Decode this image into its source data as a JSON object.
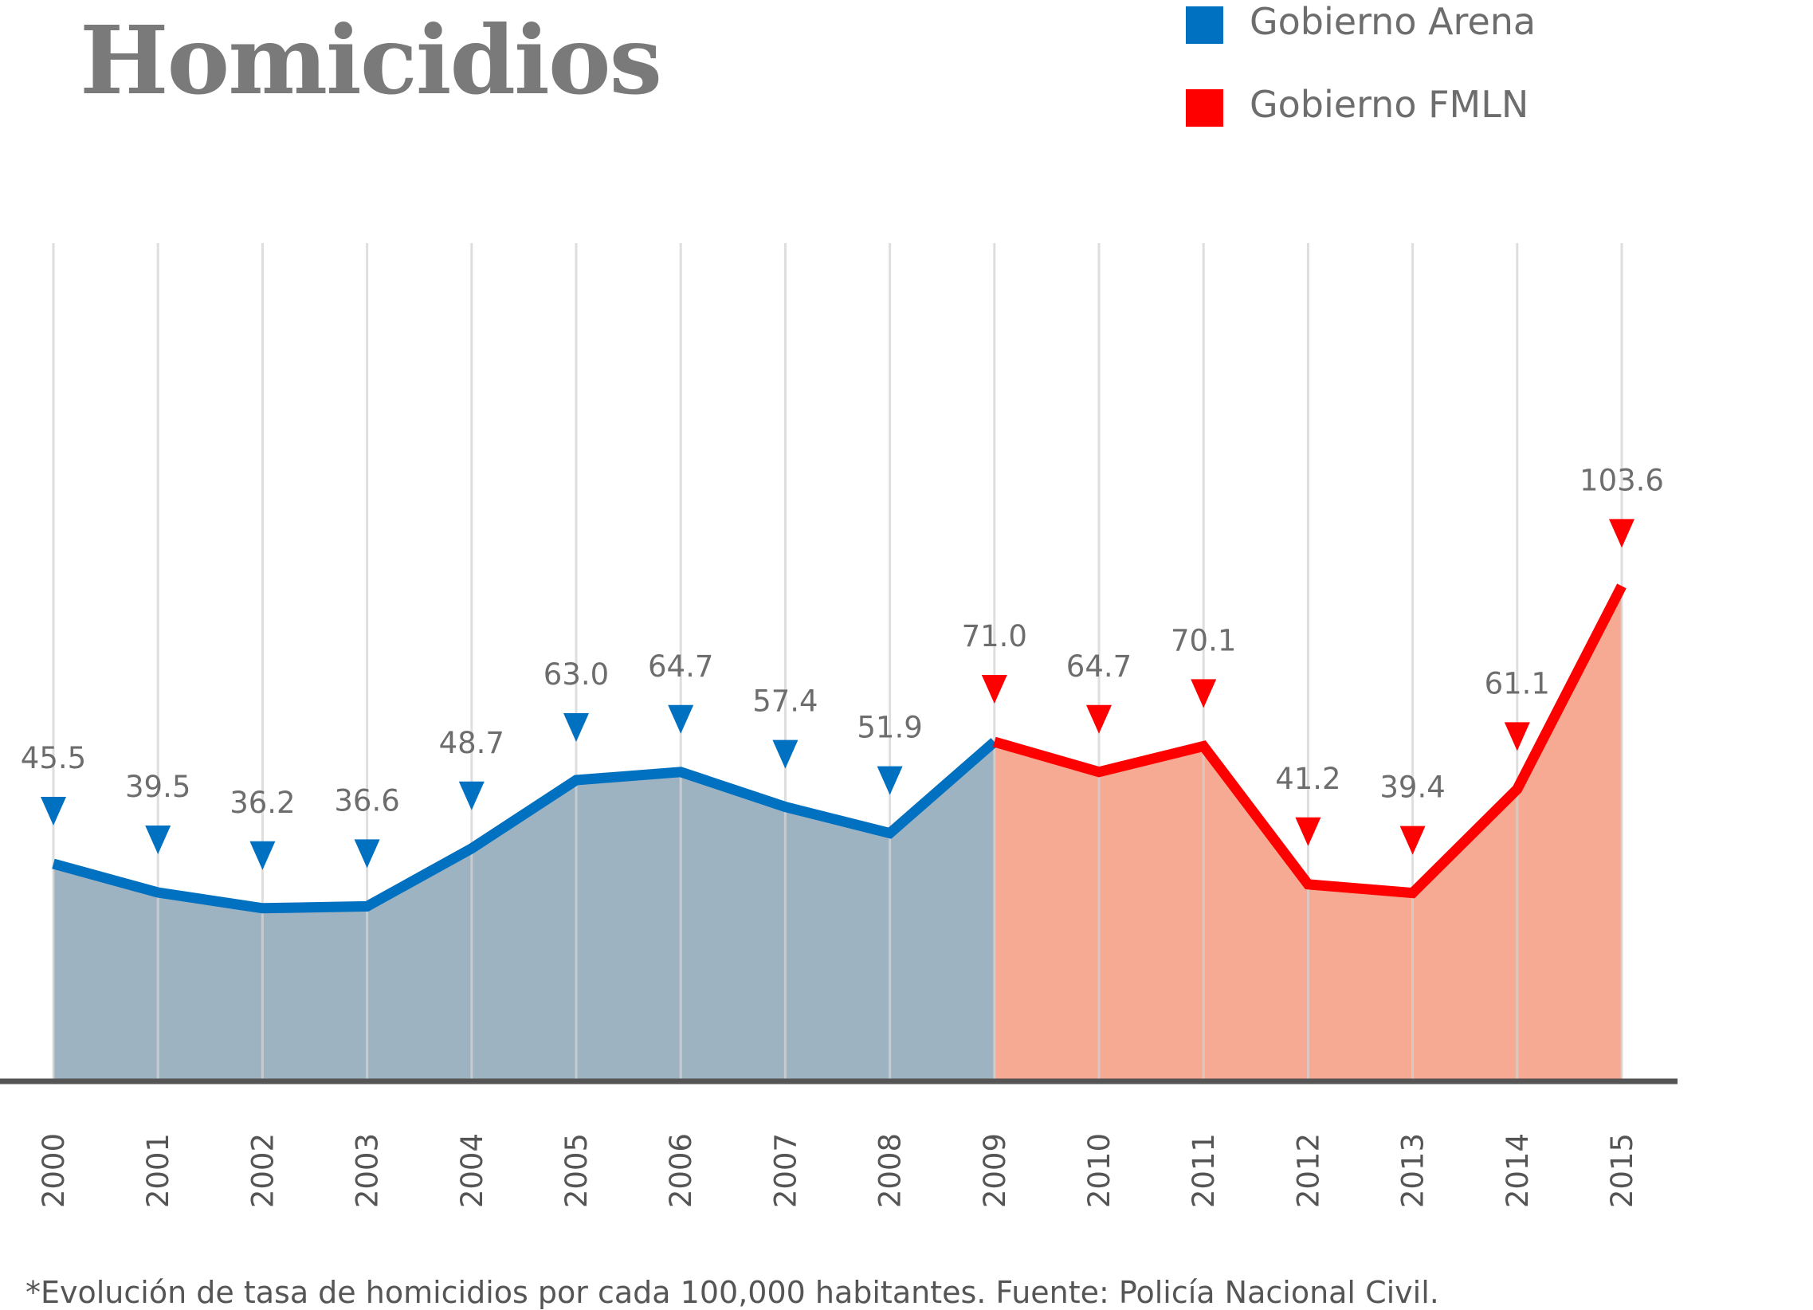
{
  "title": "Homicidios",
  "legend": [
    {
      "label": "Gobierno Arena",
      "color": "#0070c0"
    },
    {
      "label": "Gobierno FMLN",
      "color": "#ff0000"
    }
  ],
  "footnote": "*Evolución de tasa de homicidios por cada 100,000 habitantes. Fuente: Policía Nacional Civil.",
  "colors": {
    "arena_line": "#0070c0",
    "arena_fill": "#9eb3c1",
    "fmln_line": "#ff0000",
    "fmln_fill": "#f6a993",
    "grid": "#d3d3d3",
    "axis": "#555555"
  },
  "chart_data": {
    "type": "area",
    "title": "",
    "xlabel": "",
    "ylabel": "",
    "ylim": [
      0,
      110
    ],
    "grid": "vertical",
    "categories": [
      "2000",
      "2001",
      "2002",
      "2003",
      "2004",
      "2005",
      "2006",
      "2007",
      "2008",
      "2009",
      "2010",
      "2011",
      "2012",
      "2013",
      "2014",
      "2015"
    ],
    "value_labels": [
      "45.5",
      "39.5",
      "36.2",
      "36.6",
      "48.7",
      "63.0",
      "64.7",
      "57.4",
      "51.9",
      "71.0",
      "64.7",
      "70.1",
      "41.2",
      "39.4",
      "61.1",
      "103.6"
    ],
    "values": [
      45.5,
      39.5,
      36.2,
      36.6,
      48.7,
      63.0,
      64.7,
      57.4,
      51.9,
      71.0,
      64.7,
      70.1,
      41.2,
      39.4,
      61.1,
      103.6
    ],
    "series": [
      {
        "name": "Gobierno Arena",
        "color": "#0070c0",
        "from": "2000",
        "to": "2009"
      },
      {
        "name": "Gobierno FMLN",
        "color": "#ff0000",
        "from": "2009",
        "to": "2015"
      }
    ]
  }
}
